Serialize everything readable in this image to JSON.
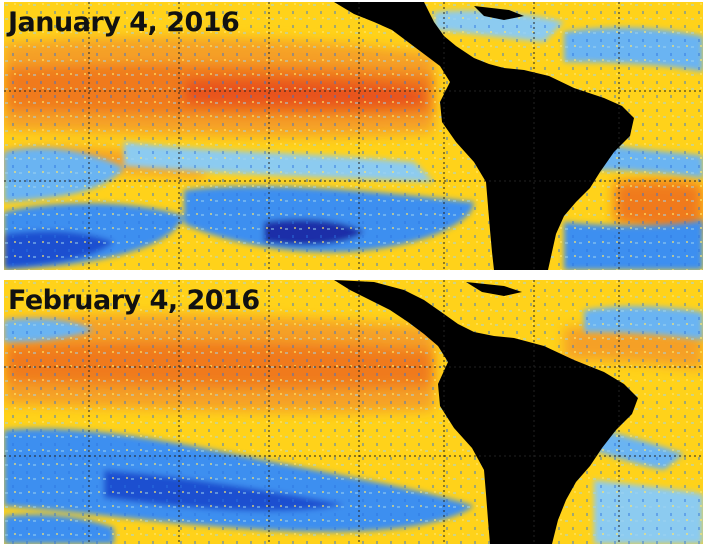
{
  "panels": [
    {
      "date_label": "January 4, 2016"
    },
    {
      "date_label": "February 4, 2016"
    }
  ],
  "colors": {
    "warm_anomaly": "#f07a1e",
    "strong_warm": "#e8521a",
    "neutral": "#ffd21a",
    "cool_anomaly": "#3d8ff0",
    "strong_cool": "#1a2fa8",
    "land": "#000000"
  }
}
